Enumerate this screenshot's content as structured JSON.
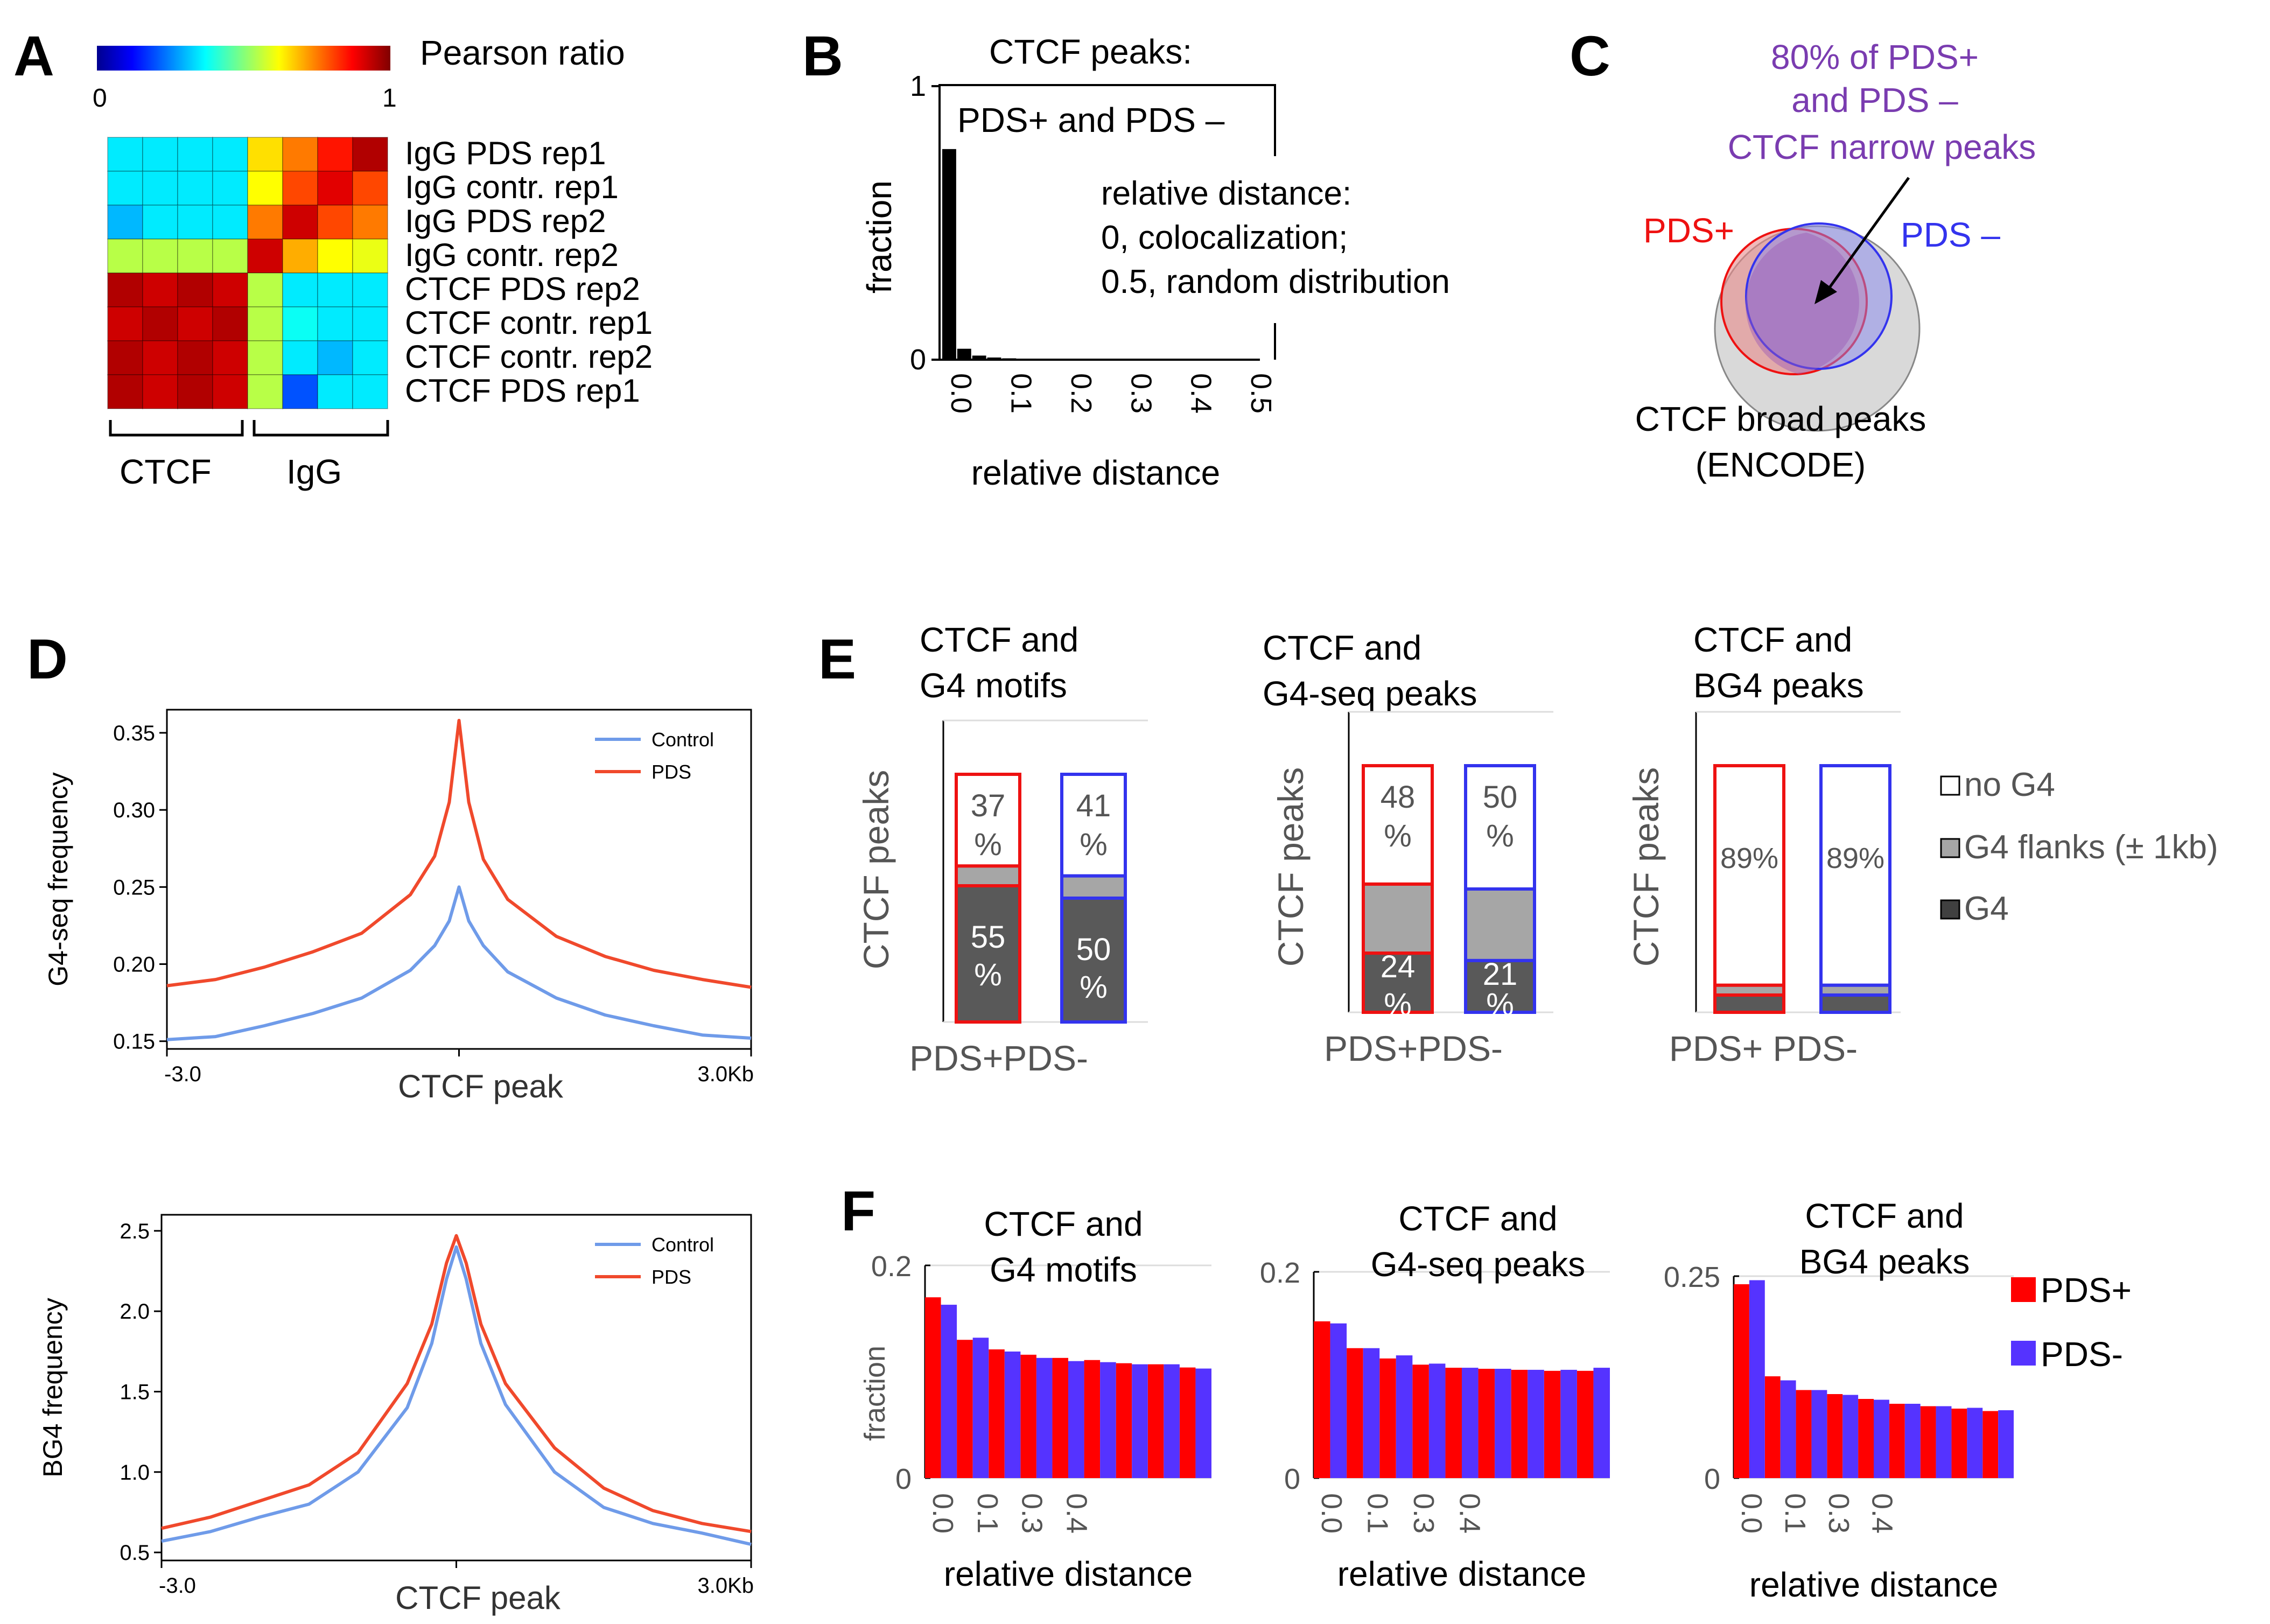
{
  "colors": {
    "red": "#ee1111",
    "blue": "#3333ee",
    "purple": "#7a3cb0",
    "grey_flank": "#a6a6a6",
    "dark": "#595959",
    "venn_grey": "#d9d9d9",
    "f_red": "#ff0000",
    "f_blue": "#5533ff",
    "d_red": "#f0492c",
    "d_blue": "#6f9be9",
    "gray_text": "#555555"
  },
  "panels": {
    "A": {
      "letter": "A",
      "colorbar_label": "Pearson ratio",
      "colorbar_min": "0",
      "colorbar_max": "1",
      "rows": [
        "IgG PDS rep1",
        "IgG contr. rep1",
        "IgG PDS rep2",
        "IgG contr. rep2",
        "CTCF PDS rep2",
        "CTCF contr. rep1",
        "CTCF contr. rep2",
        "CTCF PDS rep1"
      ],
      "group_labels": [
        "CTCF",
        "IgG"
      ],
      "matrix": [
        [
          0.35,
          0.35,
          0.35,
          0.35,
          0.65,
          0.75,
          0.85,
          0.95
        ],
        [
          0.35,
          0.35,
          0.35,
          0.35,
          0.62,
          0.8,
          0.9,
          0.8
        ],
        [
          0.3,
          0.35,
          0.35,
          0.35,
          0.75,
          0.92,
          0.8,
          0.75
        ],
        [
          0.55,
          0.55,
          0.55,
          0.55,
          0.92,
          0.7,
          0.62,
          0.6
        ],
        [
          0.95,
          0.92,
          0.95,
          0.92,
          0.55,
          0.35,
          0.35,
          0.35
        ],
        [
          0.92,
          0.95,
          0.92,
          0.95,
          0.55,
          0.38,
          0.35,
          0.35
        ],
        [
          0.95,
          0.92,
          0.95,
          0.92,
          0.55,
          0.35,
          0.3,
          0.35
        ],
        [
          0.95,
          0.92,
          0.95,
          0.92,
          0.55,
          0.2,
          0.35,
          0.35
        ]
      ]
    },
    "B": {
      "letter": "B",
      "title": "CTCF peaks:",
      "subtitle": "PDS+ and PDS –",
      "annotation": [
        "relative distance:",
        "0, colocalization;",
        "0.5, random distribution"
      ]
    },
    "C": {
      "letter": "C",
      "title": [
        "80% of PDS+",
        "and PDS –",
        "CTCF narrow peaks"
      ],
      "pds_plus": "PDS+",
      "pds_minus": "PDS –",
      "broad": [
        "CTCF broad peaks",
        "(ENCODE)"
      ]
    },
    "D": {
      "letter": "D",
      "center_label": "CTCF peak",
      "x_left": "-3.0",
      "x_right": "3.0Kb",
      "legend": [
        "Control",
        "PDS"
      ]
    },
    "E": {
      "letter": "E",
      "ylabel": "CTCF peaks",
      "legend": [
        "no G4",
        "G4 flanks (± 1kb)",
        "G4"
      ],
      "groups": [
        {
          "title": [
            "CTCF and",
            "G4 motifs"
          ],
          "xlabel": "PDS+PDS-",
          "bars": [
            {
              "g4": 55,
              "flank": 8,
              "nog4": 37,
              "label_top": [
                "37",
                "%"
              ],
              "label_bottom": [
                "55",
                "%"
              ]
            },
            {
              "g4": 50,
              "flank": 9,
              "nog4": 41,
              "label_top": [
                "41",
                "%"
              ],
              "label_bottom": [
                "50",
                "%"
              ]
            }
          ]
        },
        {
          "title": [
            "CTCF and",
            "G4-seq peaks"
          ],
          "xlabel": "PDS+PDS-",
          "bars": [
            {
              "g4": 24,
              "flank": 28,
              "nog4": 48,
              "label_top": [
                "48",
                "%"
              ],
              "label_bottom": [
                "24",
                "%"
              ]
            },
            {
              "g4": 21,
              "flank": 29,
              "nog4": 50,
              "label_top": [
                "50",
                "%"
              ],
              "label_bottom": [
                "21",
                "%"
              ]
            }
          ]
        },
        {
          "title": [
            "CTCF and",
            "BG4 peaks"
          ],
          "xlabel": "PDS+ PDS-",
          "bars": [
            {
              "g4": 7,
              "flank": 4,
              "nog4": 89,
              "label_top": [
                "89%"
              ],
              "label_bottom": []
            },
            {
              "g4": 7,
              "flank": 4,
              "nog4": 89,
              "label_top": [
                "89%"
              ],
              "label_bottom": []
            }
          ]
        }
      ]
    },
    "F": {
      "letter": "F",
      "legend": [
        "PDS+",
        "PDS-"
      ]
    }
  },
  "chart_data": [
    {
      "type": "bar",
      "panel": "B",
      "title": "CTCF peaks:",
      "xlabel": "relative distance",
      "ylabel": "fraction",
      "categories": [
        "0.0",
        "0.025",
        "0.05",
        "0.075",
        "0.1",
        "0.125",
        "0.15",
        "0.175",
        "0.2",
        "0.225",
        "0.25",
        "0.275",
        "0.3",
        "0.325",
        "0.35",
        "0.375",
        "0.4",
        "0.425",
        "0.45",
        "0.475",
        "0.5"
      ],
      "values": [
        0.77,
        0.04,
        0.015,
        0.008,
        0.005,
        0,
        0,
        0,
        0,
        0,
        0,
        0,
        0,
        0,
        0,
        0,
        0,
        0,
        0,
        0,
        0
      ],
      "ylim": [
        0,
        1
      ],
      "yticks": [
        "0",
        "1"
      ],
      "xticks": [
        "0.0",
        "0.1",
        "0.2",
        "0.3",
        "0.4",
        "0.5"
      ]
    },
    {
      "type": "line",
      "panel": "D",
      "ylabel": "G4-seq frequency",
      "xlabel": "CTCF peak",
      "ylim": [
        0.145,
        0.365
      ],
      "yticks": [
        "0.15",
        "0.20",
        "0.25",
        "0.30",
        "0.35"
      ],
      "ytick_values": [
        0.15,
        0.2,
        0.25,
        0.3,
        0.35
      ],
      "x": [
        -3.0,
        -2.5,
        -2.0,
        -1.5,
        -1.0,
        -0.5,
        -0.25,
        -0.1,
        0,
        0.1,
        0.25,
        0.5,
        1.0,
        1.5,
        2.0,
        2.5,
        3.0
      ],
      "series": [
        {
          "name": "Control",
          "values": [
            0.151,
            0.153,
            0.16,
            0.168,
            0.178,
            0.196,
            0.212,
            0.228,
            0.25,
            0.228,
            0.212,
            0.195,
            0.178,
            0.167,
            0.16,
            0.154,
            0.152
          ]
        },
        {
          "name": "PDS",
          "values": [
            0.186,
            0.19,
            0.198,
            0.208,
            0.22,
            0.245,
            0.27,
            0.305,
            0.358,
            0.305,
            0.268,
            0.242,
            0.218,
            0.205,
            0.196,
            0.19,
            0.185
          ]
        }
      ]
    },
    {
      "type": "line",
      "panel": "D2",
      "ylabel": "BG4 frequency",
      "xlabel": "CTCF peak",
      "ylim": [
        0.45,
        2.6
      ],
      "yticks": [
        "0.5",
        "1.0",
        "1.5",
        "2.0",
        "2.5"
      ],
      "ytick_values": [
        0.5,
        1.0,
        1.5,
        2.0,
        2.5
      ],
      "x": [
        -3.0,
        -2.5,
        -2.0,
        -1.5,
        -1.0,
        -0.5,
        -0.25,
        -0.1,
        0,
        0.1,
        0.25,
        0.5,
        1.0,
        1.5,
        2.0,
        2.5,
        3.0
      ],
      "series": [
        {
          "name": "Control",
          "values": [
            0.57,
            0.63,
            0.72,
            0.8,
            1.0,
            1.4,
            1.8,
            2.2,
            2.4,
            2.2,
            1.8,
            1.42,
            1.0,
            0.78,
            0.68,
            0.62,
            0.55
          ]
        },
        {
          "name": "PDS",
          "values": [
            0.65,
            0.72,
            0.82,
            0.92,
            1.12,
            1.55,
            1.92,
            2.3,
            2.47,
            2.3,
            1.92,
            1.55,
            1.15,
            0.9,
            0.76,
            0.68,
            0.63
          ]
        }
      ]
    },
    {
      "type": "bar",
      "panel": "F1",
      "title": [
        "CTCF and",
        "G4 motifs"
      ],
      "xlabel": "relative distance",
      "ylabel": "fraction",
      "categories": [
        "0.0",
        "0.05",
        "0.1",
        "0.15",
        "0.2",
        "0.25",
        "0.3",
        "0.35",
        "0.4"
      ],
      "series": [
        {
          "name": "PDS+",
          "values": [
            0.17,
            0.13,
            0.121,
            0.116,
            0.113,
            0.111,
            0.108,
            0.107,
            0.104
          ]
        },
        {
          "name": "PDS-",
          "values": [
            0.163,
            0.132,
            0.119,
            0.113,
            0.11,
            0.109,
            0.107,
            0.107,
            0.103
          ]
        }
      ],
      "ylim": [
        0,
        0.2
      ],
      "yticks": [
        "0",
        "0.2"
      ],
      "xticks": [
        "0.0",
        "0.1",
        "0.3",
        "0.4"
      ]
    },
    {
      "type": "bar",
      "panel": "F2",
      "title": [
        "CTCF and",
        "G4-seq peaks"
      ],
      "xlabel": "relative distance",
      "ylabel": "",
      "categories": [
        "0.0",
        "0.05",
        "0.1",
        "0.15",
        "0.2",
        "0.25",
        "0.3",
        "0.35",
        "0.4"
      ],
      "series": [
        {
          "name": "PDS+",
          "values": [
            0.152,
            0.126,
            0.116,
            0.11,
            0.107,
            0.106,
            0.105,
            0.104,
            0.104
          ]
        },
        {
          "name": "PDS-",
          "values": [
            0.15,
            0.126,
            0.119,
            0.111,
            0.107,
            0.106,
            0.105,
            0.105,
            0.107
          ]
        }
      ],
      "ylim": [
        0,
        0.2
      ],
      "yticks": [
        "0",
        "0.2"
      ],
      "xticks": [
        "0.0",
        "0.1",
        "0.3",
        "0.4"
      ]
    },
    {
      "type": "bar",
      "panel": "F3",
      "title": [
        "CTCF and",
        "BG4 peaks"
      ],
      "xlabel": "relative distance",
      "ylabel": "",
      "categories": [
        "0.0",
        "0.05",
        "0.1",
        "0.15",
        "0.2",
        "0.25",
        "0.3",
        "0.35",
        "0.4"
      ],
      "series": [
        {
          "name": "PDS+",
          "values": [
            0.24,
            0.126,
            0.109,
            0.104,
            0.098,
            0.092,
            0.089,
            0.086,
            0.083
          ]
        },
        {
          "name": "PDS-",
          "values": [
            0.245,
            0.121,
            0.109,
            0.103,
            0.097,
            0.092,
            0.089,
            0.087,
            0.084
          ]
        }
      ],
      "ylim": [
        0,
        0.25
      ],
      "yticks": [
        "0",
        "0.25"
      ],
      "xticks": [
        "0.0",
        "0.1",
        "0.3",
        "0.4"
      ]
    }
  ]
}
